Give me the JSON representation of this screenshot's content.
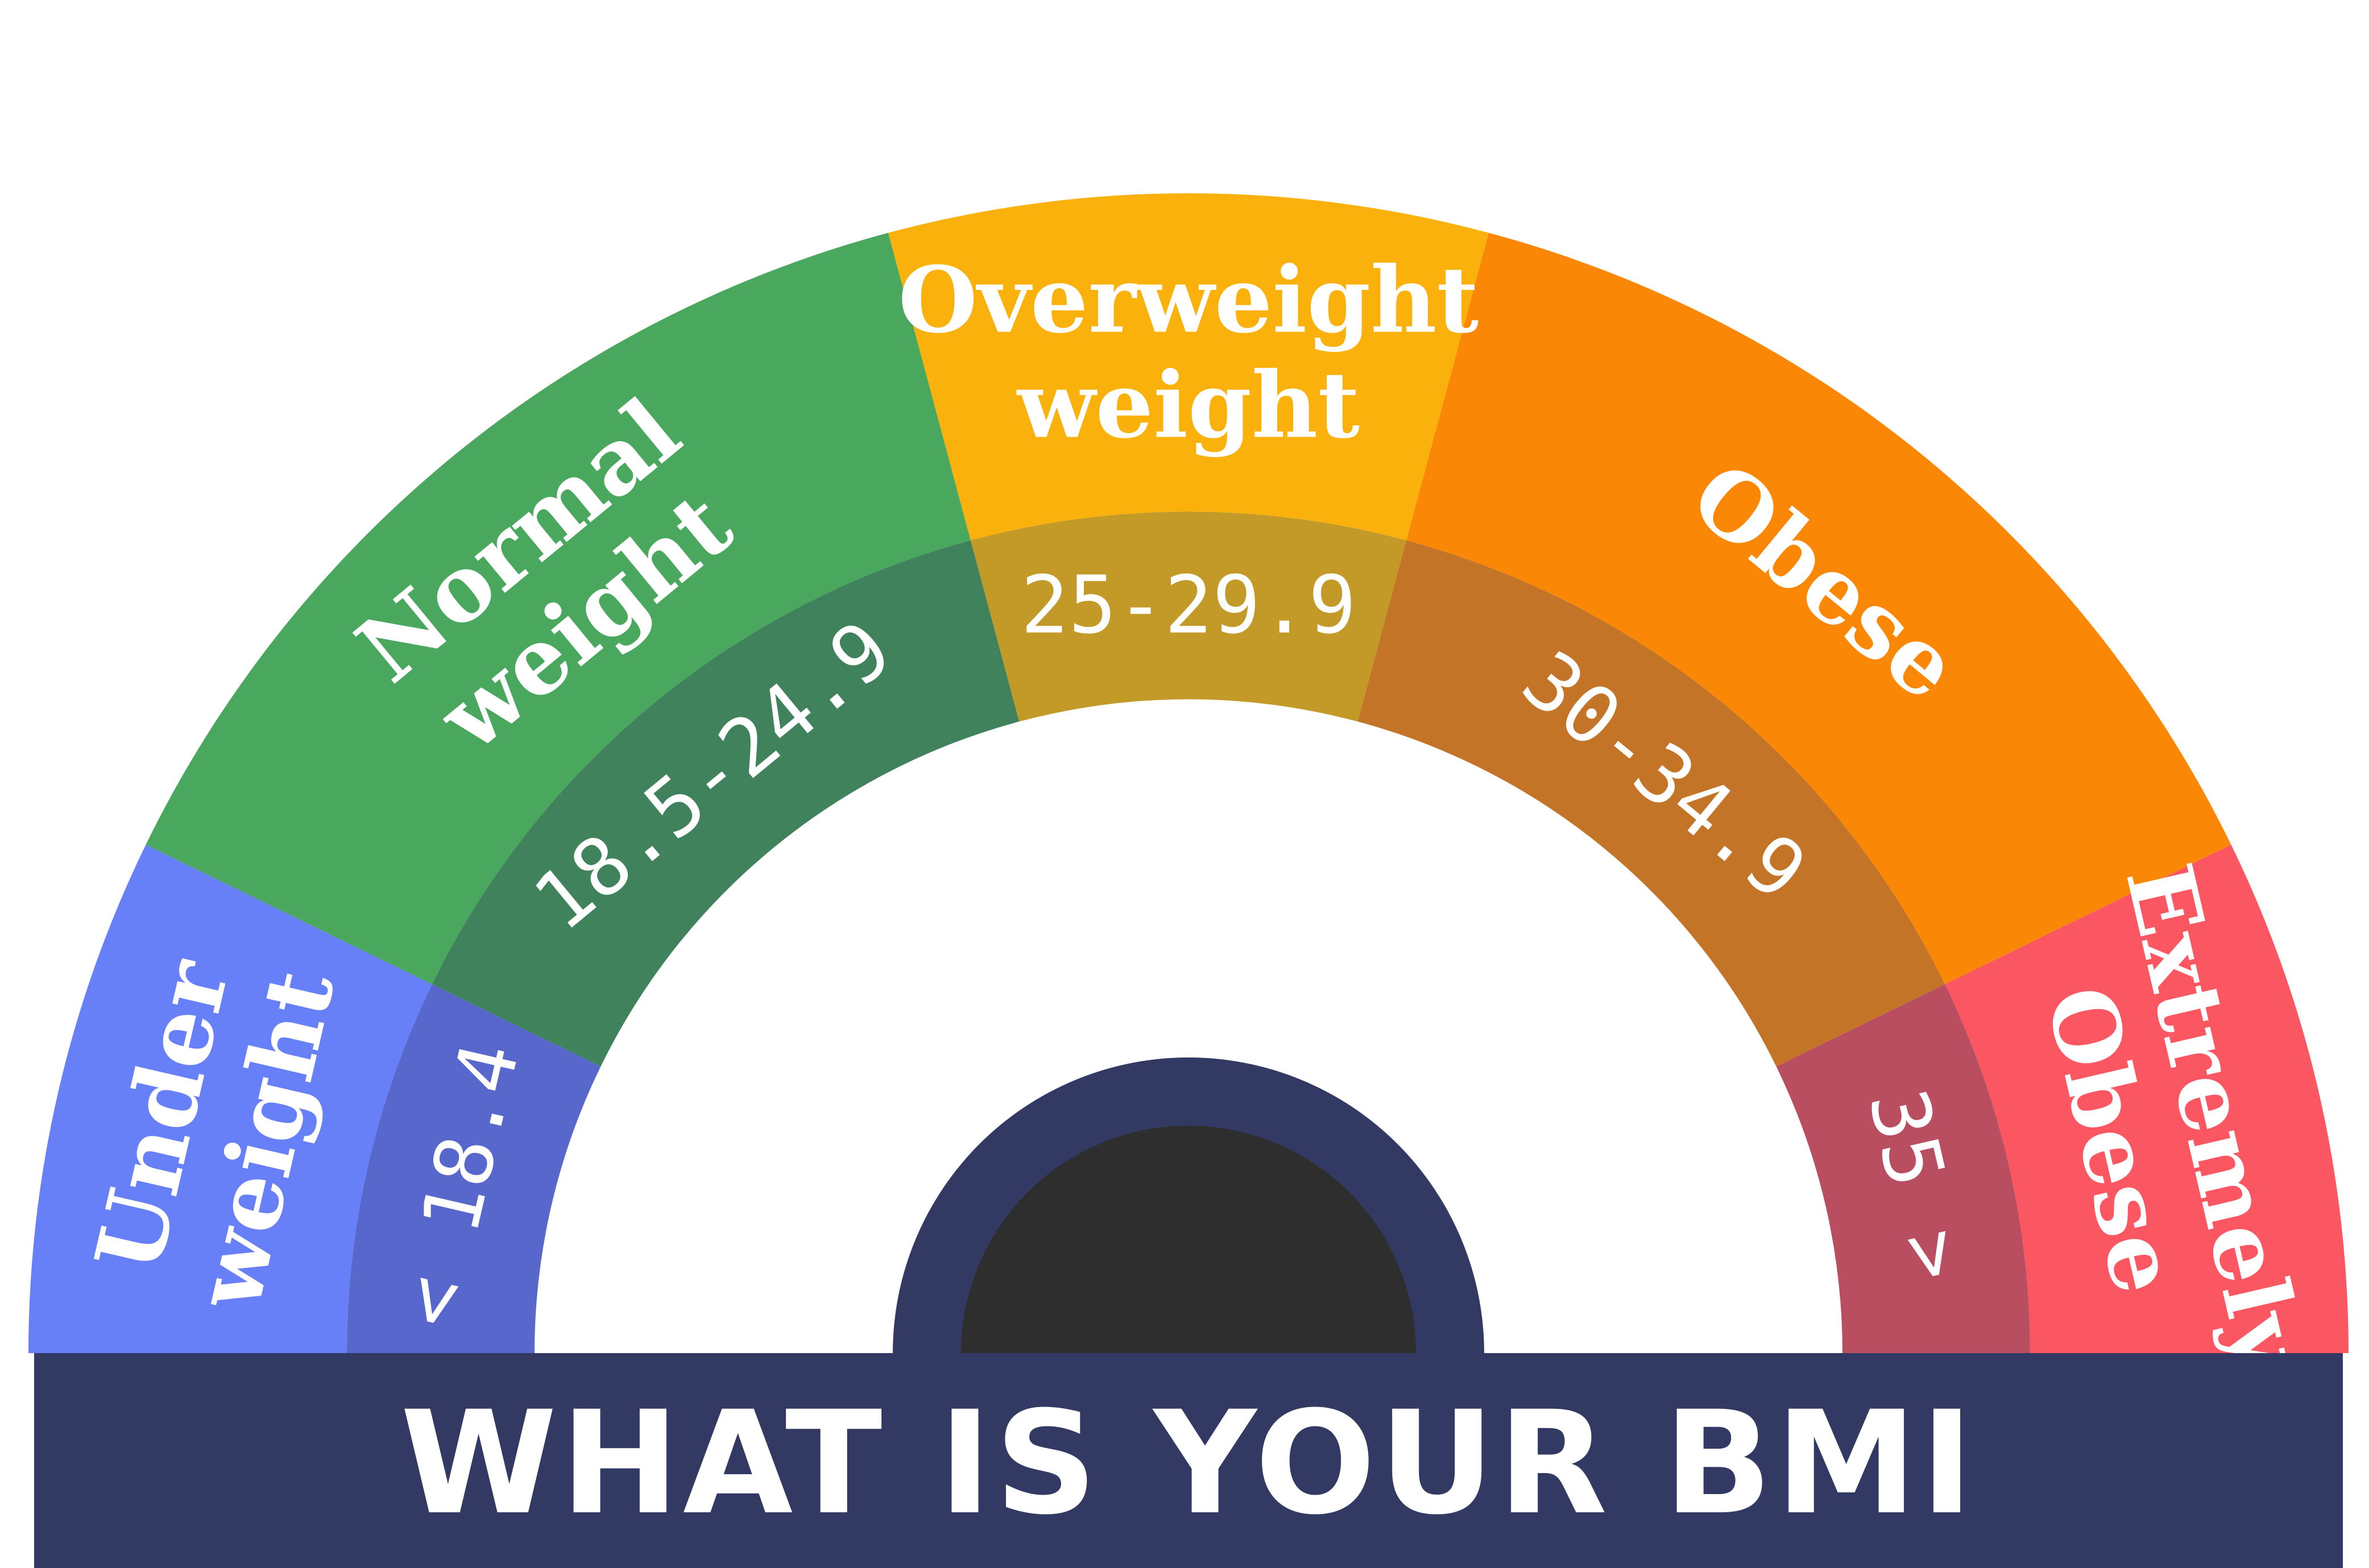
{
  "title": "WHAT IS YOUR BMI",
  "colors": {
    "banner": "#323a63",
    "knob_outer": "#323a63",
    "knob_inner": "#2e2e2e",
    "background": "#ffffff"
  },
  "segments": [
    {
      "name": "underweight",
      "lines": [
        "Under",
        "weight"
      ],
      "range": "< 18.4",
      "color": "#6880f7",
      "inner_color": "#5867cb"
    },
    {
      "name": "normal",
      "lines": [
        "Normal",
        "weight"
      ],
      "range": "18.5-24.9",
      "color": "#4aa75e",
      "inner_color": "#3f825b"
    },
    {
      "name": "overweight",
      "lines": [
        "Overweight",
        "weight"
      ],
      "range": "25-29.9",
      "color": "#fbb10b",
      "inner_color": "#c39a27"
    },
    {
      "name": "obese",
      "lines": [
        "Obese"
      ],
      "range": "30-34.9",
      "color": "#fb8707",
      "inner_color": "#c37427"
    },
    {
      "name": "extremely-obese",
      "lines": [
        "Extremely",
        "Obese"
      ],
      "range": "35 >",
      "color": "#fa5763",
      "inner_color": "#b84e60"
    }
  ]
}
